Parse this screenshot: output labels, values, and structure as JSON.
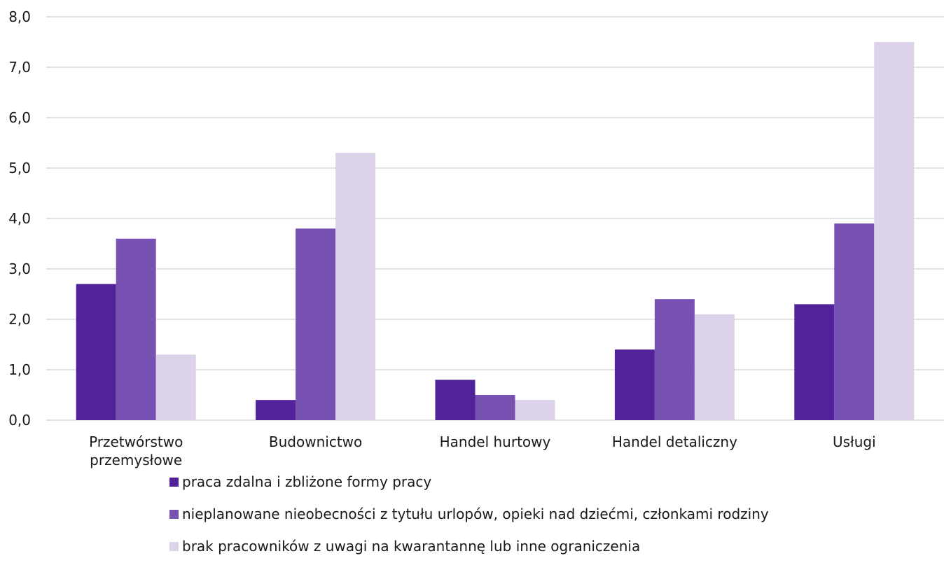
{
  "chart_data": {
    "type": "bar",
    "categories": [
      [
        "Przetwórstwo",
        "przemysłowe"
      ],
      [
        "Budownictwo"
      ],
      [
        "Handel hurtowy"
      ],
      [
        "Handel detaliczny"
      ],
      [
        "Usługi"
      ]
    ],
    "series": [
      {
        "name": "praca zdalna i zbliżone formy pracy",
        "color": "#51229a",
        "values": [
          2.7,
          0.4,
          0.8,
          1.4,
          2.3
        ]
      },
      {
        "name": "nieplanowane nieobecności z tytułu urlopów, opieki nad dziećmi, członkami rodziny",
        "color": "#7651b2",
        "values": [
          3.6,
          3.8,
          0.5,
          2.4,
          3.9
        ]
      },
      {
        "name": "brak pracowników z uwagi na kwarantannę lub inne ograniczenia",
        "color": "#dcd3ea",
        "values": [
          1.3,
          5.3,
          0.4,
          2.1,
          7.5
        ]
      }
    ],
    "ylim": [
      0,
      8
    ],
    "yticks": [
      "0,0",
      "1,0",
      "2,0",
      "3,0",
      "4,0",
      "5,0",
      "6,0",
      "7,0",
      "8,0"
    ],
    "grid": true,
    "legend_position": "bottom",
    "gridline_color": "#d9d9d9"
  }
}
